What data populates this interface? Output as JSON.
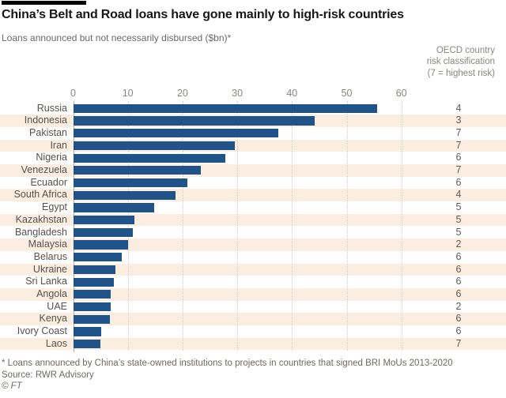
{
  "chart_data": {
    "type": "bar",
    "orientation": "horizontal",
    "title": "China’s Belt and Road loans have gone mainly to high-risk countries",
    "subtitle": "Loans announced but not necessarily disbursed ($bn)*",
    "xlabel": "",
    "ylabel": "",
    "xlim": [
      0,
      60
    ],
    "x_ticks": [
      0,
      10,
      20,
      30,
      40,
      50,
      60
    ],
    "grid": true,
    "legend_position": "top-right",
    "categories": [
      "Russia",
      "Indonesia",
      "Pakistan",
      "Iran",
      "Nigeria",
      "Venezuela",
      "Ecuador",
      "South Africa",
      "Egypt",
      "Kazakhstan",
      "Bangladesh",
      "Malaysia",
      "Belarus",
      "Ukraine",
      "Sri Lanka",
      "Angola",
      "UAE",
      "Kenya",
      "Ivory Coast",
      "Laos"
    ],
    "values": [
      55.6,
      44.2,
      37.5,
      29.5,
      27.8,
      23.3,
      20.9,
      18.7,
      14.8,
      11.2,
      10.9,
      10.1,
      8.9,
      7.7,
      7.5,
      6.9,
      6.8,
      6.7,
      5.2,
      5.0
    ],
    "secondary_column": {
      "label": "OECD country\nrisk classification\n(7 = highest risk)",
      "values": [
        4,
        3,
        7,
        7,
        6,
        7,
        6,
        4,
        5,
        5,
        5,
        2,
        6,
        6,
        6,
        6,
        2,
        6,
        6,
        7
      ]
    }
  },
  "footer": {
    "footnote": "* Loans announced by China’s state-owned institutions to projects in countries that signed BRI MoUs 2013-2020",
    "source": "Source: RWR Advisory",
    "copyright": "© FT"
  },
  "colors": {
    "bar": "#20538a",
    "stripe": "#fbeee0",
    "grid": "#d5cfc8",
    "axis": "#b3ada6",
    "title_text": "#191715",
    "muted_text": "#6e6862",
    "tick_text": "#8b857e",
    "label_text": "#57524c"
  }
}
